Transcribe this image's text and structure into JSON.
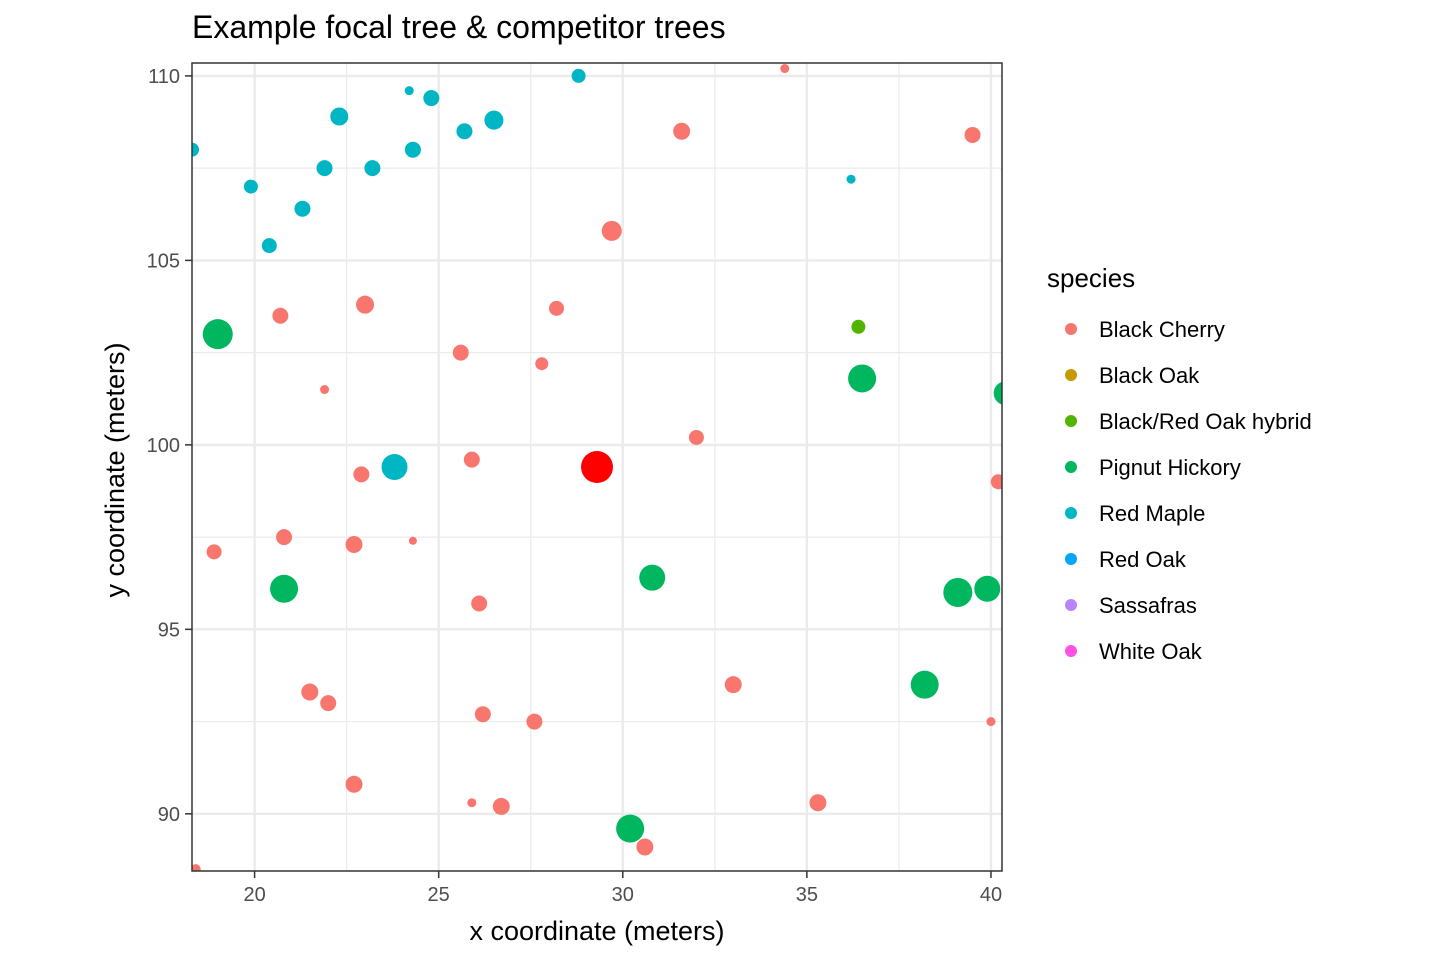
{
  "chart_data": {
    "type": "scatter",
    "title": "Example focal tree & competitor trees",
    "xlabel": "x coordinate (meters)",
    "ylabel": "y coordinate (meters)",
    "xlim": [
      18.3,
      40.3
    ],
    "ylim": [
      88.45,
      110.35
    ],
    "xticks": [
      20,
      25,
      30,
      35,
      40
    ],
    "yticks": [
      90,
      95,
      100,
      105,
      110
    ],
    "grid": true,
    "legend": {
      "title": "species",
      "position": "right",
      "entries": [
        {
          "name": "Black Cherry",
          "color": "#F8766D"
        },
        {
          "name": "Black Oak",
          "color": "#C49A00"
        },
        {
          "name": "Black/Red Oak hybrid",
          "color": "#53B400"
        },
        {
          "name": "Pignut Hickory",
          "color": "#00B65E"
        },
        {
          "name": "Red Maple",
          "color": "#00B6C4"
        },
        {
          "name": "Red Oak",
          "color": "#00A5FF"
        },
        {
          "name": "Sassafras",
          "color": "#B983FF"
        },
        {
          "name": "White Oak",
          "color": "#FF52E0"
        }
      ]
    },
    "focal_tree": {
      "x": 29.3,
      "y": 99.4,
      "size": 16,
      "color": "#FF0000"
    },
    "series": [
      {
        "name": "Black Cherry",
        "color": "#F8766D",
        "points": [
          {
            "x": 34.4,
            "y": 110.2,
            "size": 4.5
          },
          {
            "x": 31.6,
            "y": 108.5,
            "size": 8.5
          },
          {
            "x": 39.5,
            "y": 108.4,
            "size": 8
          },
          {
            "x": 29.7,
            "y": 105.8,
            "size": 10
          },
          {
            "x": 20.7,
            "y": 103.5,
            "size": 8
          },
          {
            "x": 23.0,
            "y": 103.8,
            "size": 9
          },
          {
            "x": 28.2,
            "y": 103.7,
            "size": 7.5
          },
          {
            "x": 25.6,
            "y": 102.5,
            "size": 8
          },
          {
            "x": 27.8,
            "y": 102.2,
            "size": 6.5
          },
          {
            "x": 21.9,
            "y": 101.5,
            "size": 4.5
          },
          {
            "x": 32.0,
            "y": 100.2,
            "size": 7.5
          },
          {
            "x": 22.9,
            "y": 99.2,
            "size": 8
          },
          {
            "x": 25.9,
            "y": 99.6,
            "size": 8
          },
          {
            "x": 40.2,
            "y": 99.0,
            "size": 7.5
          },
          {
            "x": 18.9,
            "y": 97.1,
            "size": 7.5
          },
          {
            "x": 20.8,
            "y": 97.5,
            "size": 8
          },
          {
            "x": 22.7,
            "y": 97.3,
            "size": 8.5
          },
          {
            "x": 24.3,
            "y": 97.4,
            "size": 4
          },
          {
            "x": 26.1,
            "y": 95.7,
            "size": 8
          },
          {
            "x": 21.5,
            "y": 93.3,
            "size": 8.5
          },
          {
            "x": 22.0,
            "y": 93.0,
            "size": 8
          },
          {
            "x": 26.2,
            "y": 92.7,
            "size": 8
          },
          {
            "x": 27.6,
            "y": 92.5,
            "size": 8
          },
          {
            "x": 33.0,
            "y": 93.5,
            "size": 8.5
          },
          {
            "x": 40.0,
            "y": 92.5,
            "size": 4.5
          },
          {
            "x": 22.7,
            "y": 90.8,
            "size": 8.5
          },
          {
            "x": 25.9,
            "y": 90.3,
            "size": 4.5
          },
          {
            "x": 26.7,
            "y": 90.2,
            "size": 8.5
          },
          {
            "x": 35.3,
            "y": 90.3,
            "size": 8.5
          },
          {
            "x": 30.6,
            "y": 89.1,
            "size": 8.5
          },
          {
            "x": 18.4,
            "y": 88.5,
            "size": 5
          }
        ]
      },
      {
        "name": "Black/Red Oak hybrid",
        "color": "#53B400",
        "points": [
          {
            "x": 36.4,
            "y": 103.2,
            "size": 7
          }
        ]
      },
      {
        "name": "Pignut Hickory",
        "color": "#00B65E",
        "points": [
          {
            "x": 19.0,
            "y": 103.0,
            "size": 15
          },
          {
            "x": 36.5,
            "y": 101.8,
            "size": 14
          },
          {
            "x": 40.4,
            "y": 101.4,
            "size": 12
          },
          {
            "x": 20.8,
            "y": 96.1,
            "size": 14
          },
          {
            "x": 30.8,
            "y": 96.4,
            "size": 13
          },
          {
            "x": 39.1,
            "y": 96.0,
            "size": 14.5
          },
          {
            "x": 39.9,
            "y": 96.1,
            "size": 13
          },
          {
            "x": 38.2,
            "y": 93.5,
            "size": 14
          },
          {
            "x": 30.2,
            "y": 89.6,
            "size": 14
          }
        ]
      },
      {
        "name": "Red Maple",
        "color": "#00B6C4",
        "points": [
          {
            "x": 28.8,
            "y": 110.0,
            "size": 7
          },
          {
            "x": 24.2,
            "y": 109.6,
            "size": 4.5
          },
          {
            "x": 24.8,
            "y": 109.4,
            "size": 8
          },
          {
            "x": 22.3,
            "y": 108.9,
            "size": 9
          },
          {
            "x": 26.5,
            "y": 108.8,
            "size": 9.5
          },
          {
            "x": 25.7,
            "y": 108.5,
            "size": 8
          },
          {
            "x": 18.3,
            "y": 108.0,
            "size": 7
          },
          {
            "x": 24.3,
            "y": 108.0,
            "size": 8
          },
          {
            "x": 21.9,
            "y": 107.5,
            "size": 8
          },
          {
            "x": 23.2,
            "y": 107.5,
            "size": 8
          },
          {
            "x": 36.2,
            "y": 107.2,
            "size": 4.5
          },
          {
            "x": 19.9,
            "y": 107.0,
            "size": 7
          },
          {
            "x": 21.3,
            "y": 106.4,
            "size": 8
          },
          {
            "x": 20.4,
            "y": 105.4,
            "size": 7.5
          },
          {
            "x": 23.8,
            "y": 99.4,
            "size": 13
          }
        ]
      }
    ]
  }
}
